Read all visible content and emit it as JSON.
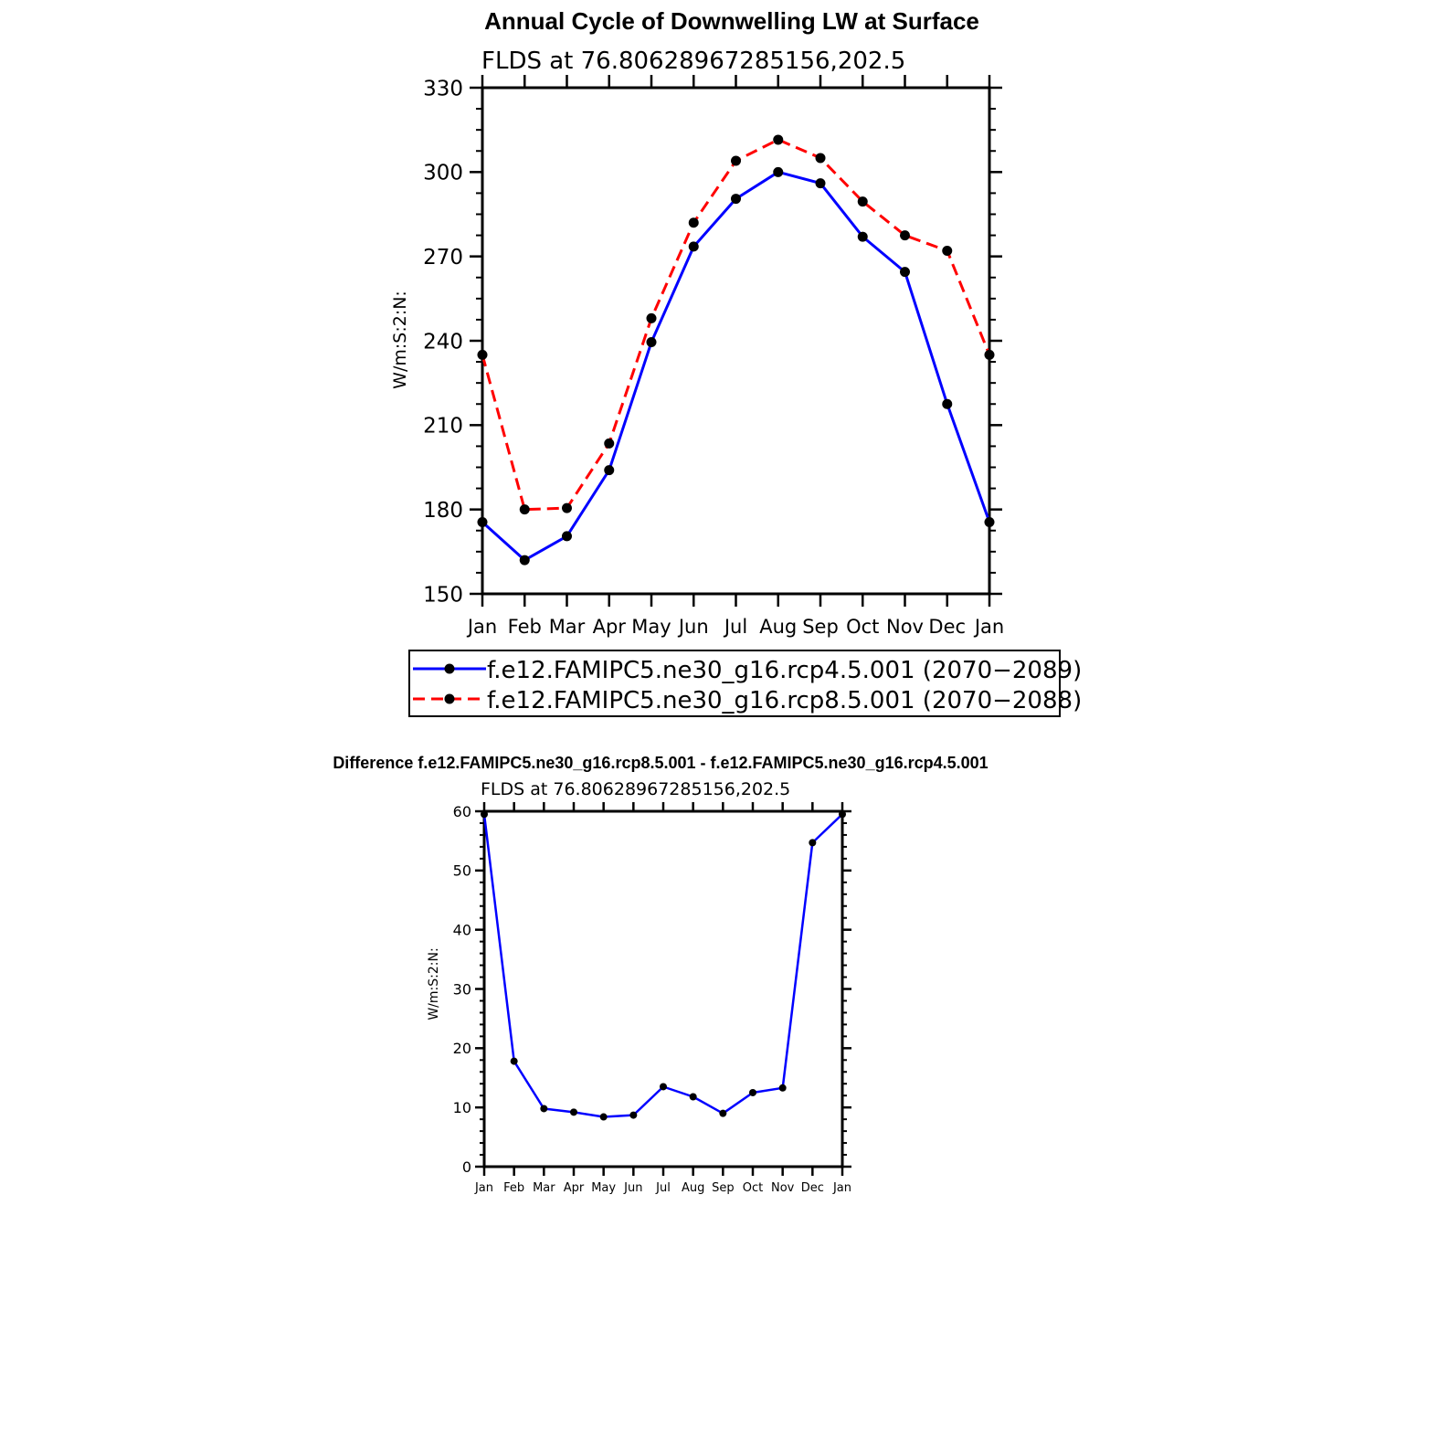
{
  "chart_data": [
    {
      "type": "line",
      "title": "Annual Cycle of Downwelling LW at Surface",
      "subtitle": "FLDS at 76.80628967285156,202.5",
      "ylabel": "W/m:S:2:N:",
      "xlabel": "",
      "categories": [
        "Jan",
        "Feb",
        "Mar",
        "Apr",
        "May",
        "Jun",
        "Jul",
        "Aug",
        "Sep",
        "Oct",
        "Nov",
        "Dec",
        "Jan"
      ],
      "ylim": [
        150,
        330
      ],
      "yticks": [
        150,
        180,
        210,
        240,
        270,
        300,
        330
      ],
      "grid": false,
      "legend_position": "bottom",
      "series": [
        {
          "name": "f.e12.FAMIPC5.ne30_g16.rcp4.5.001 (2070−2089)",
          "color": "#0000ff",
          "dash": "solid",
          "values": [
            175.5,
            162,
            170.5,
            194,
            239.5,
            273.5,
            290.5,
            300,
            296,
            277,
            264.5,
            217.5,
            175.5
          ]
        },
        {
          "name": "f.e12.FAMIPC5.ne30_g16.rcp8.5.001 (2070−2088)",
          "color": "#ff0000",
          "dash": "dashed",
          "values": [
            235,
            180,
            180.5,
            203.5,
            248,
            282,
            304,
            311.5,
            305,
            289.5,
            277.5,
            272,
            235
          ]
        }
      ]
    },
    {
      "type": "line",
      "title": "Difference f.e12.FAMIPC5.ne30_g16.rcp8.5.001 - f.e12.FAMIPC5.ne30_g16.rcp4.5.001",
      "subtitle": "FLDS at 76.80628967285156,202.5",
      "ylabel": "W/m:S:2:N:",
      "xlabel": "",
      "categories": [
        "Jan",
        "Feb",
        "Mar",
        "Apr",
        "May",
        "Jun",
        "Jul",
        "Aug",
        "Sep",
        "Oct",
        "Nov",
        "Dec",
        "Jan"
      ],
      "ylim": [
        0,
        60
      ],
      "yticks": [
        0,
        10,
        20,
        30,
        40,
        50,
        60
      ],
      "grid": false,
      "series": [
        {
          "color": "#0000ff",
          "dash": "solid",
          "values": [
            59.5,
            17.8,
            9.8,
            9.2,
            8.4,
            8.7,
            13.5,
            11.8,
            9.0,
            12.5,
            13.3,
            54.7,
            59.5
          ]
        }
      ]
    }
  ]
}
